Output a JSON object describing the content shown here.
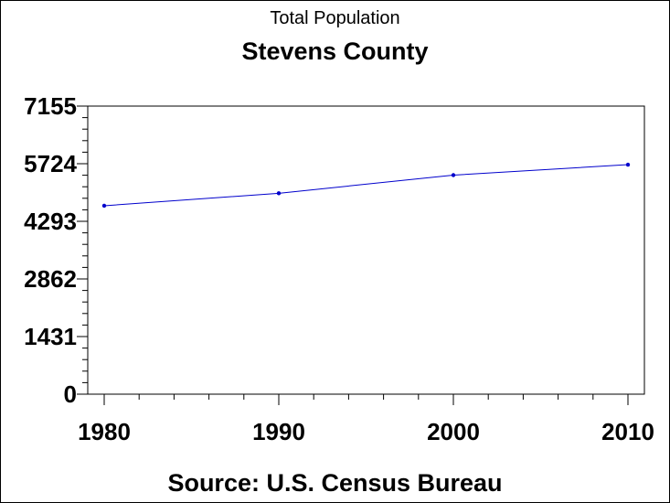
{
  "chart_data": {
    "type": "line",
    "subtitle": "Total Population",
    "title": "Stevens County",
    "source": "Source: U.S. Census Bureau",
    "x": [
      1980,
      1990,
      2000,
      2010
    ],
    "series": [
      {
        "values": [
          4680,
          4990,
          5440,
          5700
        ]
      }
    ],
    "xlim": [
      1980,
      2010
    ],
    "ylim": [
      0,
      7155
    ],
    "yticks": [
      0,
      1431,
      2862,
      4293,
      5724,
      7155
    ],
    "xticks": [
      1980,
      1990,
      2000,
      2010
    ],
    "grid": false,
    "line_color": "#0000cc"
  }
}
